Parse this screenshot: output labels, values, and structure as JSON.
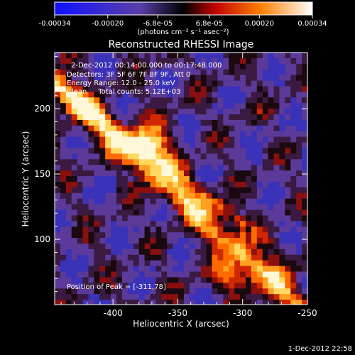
{
  "colorbar": {
    "tick_labels": [
      "-0.00034",
      "-0.00020",
      "-6.8e-05",
      "6.8e-05",
      "0.00020",
      "0.00034"
    ],
    "tick_values": [
      -0.00034,
      -0.0002,
      -6.8e-05,
      6.8e-05,
      0.0002,
      0.00034
    ],
    "range": [
      -0.00034,
      0.00034
    ],
    "units_label": "(photons cm⁻² s⁻¹ asec⁻²)"
  },
  "title": "Reconstructed RHESSI Image",
  "info": {
    "line1": "2-Dec-2012 00:14:00.000 to 00:17:48.000",
    "line2": "Detectors: 3F 5F 6F 7F 8F 9F, Att 0",
    "line3": "Energy Range: 12.0 - 25.0 keV",
    "line4": "Clean     Total counts: 5.12E+03"
  },
  "peak_label": "Position of Peak = [-311,78]",
  "axes": {
    "xlabel": "Heliocentric X (arcsec)",
    "ylabel": "Heliocentric Y (arcsec)",
    "xlim": [
      -445,
      -250
    ],
    "ylim": [
      50,
      243
    ],
    "xticks": [
      -400,
      -350,
      -300,
      -250
    ],
    "yticks": [
      100,
      150,
      200
    ]
  },
  "timestamp": "1-Dec-2012 22:58",
  "colors": {
    "background": "#000000",
    "foreground": "#ffffff"
  }
}
